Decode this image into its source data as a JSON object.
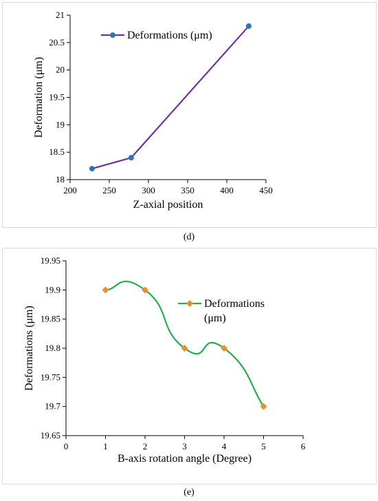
{
  "captions": {
    "d": "(d)",
    "e": "(e)"
  },
  "chart_data": [
    {
      "type": "line",
      "title": "",
      "xlabel": "Z-axial position",
      "ylabel": "Deformation (μm)",
      "xlim": [
        200,
        450
      ],
      "ylim": [
        18,
        21
      ],
      "x_ticks": [
        "200",
        "250",
        "300",
        "350",
        "400",
        "450"
      ],
      "y_ticks": [
        "18",
        "18.5",
        "19",
        "19.5",
        "20",
        "20.5",
        "21"
      ],
      "series": [
        {
          "name": "Deformations (μm)",
          "x": [
            228,
            278,
            428
          ],
          "y": [
            18.2,
            18.4,
            20.8
          ],
          "color": "#7030a0",
          "marker_color": "#2e75b6",
          "marker": "circle",
          "smooth": false
        }
      ],
      "legend": "top-left",
      "grid": false
    },
    {
      "type": "line",
      "title": "",
      "xlabel": "B-axis rotation angle (Degree)",
      "ylabel": "Deformations (μm)",
      "xlim": [
        0,
        6
      ],
      "ylim": [
        19.65,
        19.95
      ],
      "x_ticks": [
        "0",
        "1",
        "2",
        "3",
        "4",
        "5",
        "6"
      ],
      "y_ticks": [
        "19.65",
        "19.7",
        "19.75",
        "19.8",
        "19.85",
        "19.9",
        "19.95"
      ],
      "series": [
        {
          "name": "Deformations (μm)",
          "x": [
            1,
            2,
            3,
            4,
            5
          ],
          "y": [
            19.9,
            19.9,
            19.8,
            19.8,
            19.7
          ],
          "color": "#22b04a",
          "marker_color": "#f28c28",
          "marker": "diamond",
          "smooth": true
        }
      ],
      "legend_lines": [
        "Deformations",
        "(μm)"
      ],
      "legend": "top-right",
      "grid": false
    }
  ]
}
